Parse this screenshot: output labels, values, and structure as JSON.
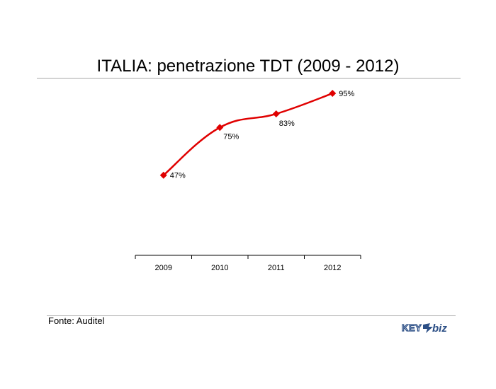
{
  "slide": {
    "title": "ITALIA: penetrazione TDT (2009 - 2012)",
    "source": "Fonte: Auditel",
    "logo_text": "KEY4biz"
  },
  "chart_data": {
    "type": "line",
    "title": "ITALIA: penetrazione TDT (2009 - 2012)",
    "xlabel": "",
    "ylabel": "",
    "categories": [
      "2009",
      "2010",
      "2011",
      "2012"
    ],
    "series": [
      {
        "values": [
          47,
          75,
          83,
          95
        ],
        "labels": [
          "47%",
          "75%",
          "83%",
          "95%"
        ],
        "color": "#e00000",
        "marker": "diamond"
      }
    ],
    "ylim": [
      0,
      100
    ],
    "grid": false,
    "legend": "none"
  }
}
